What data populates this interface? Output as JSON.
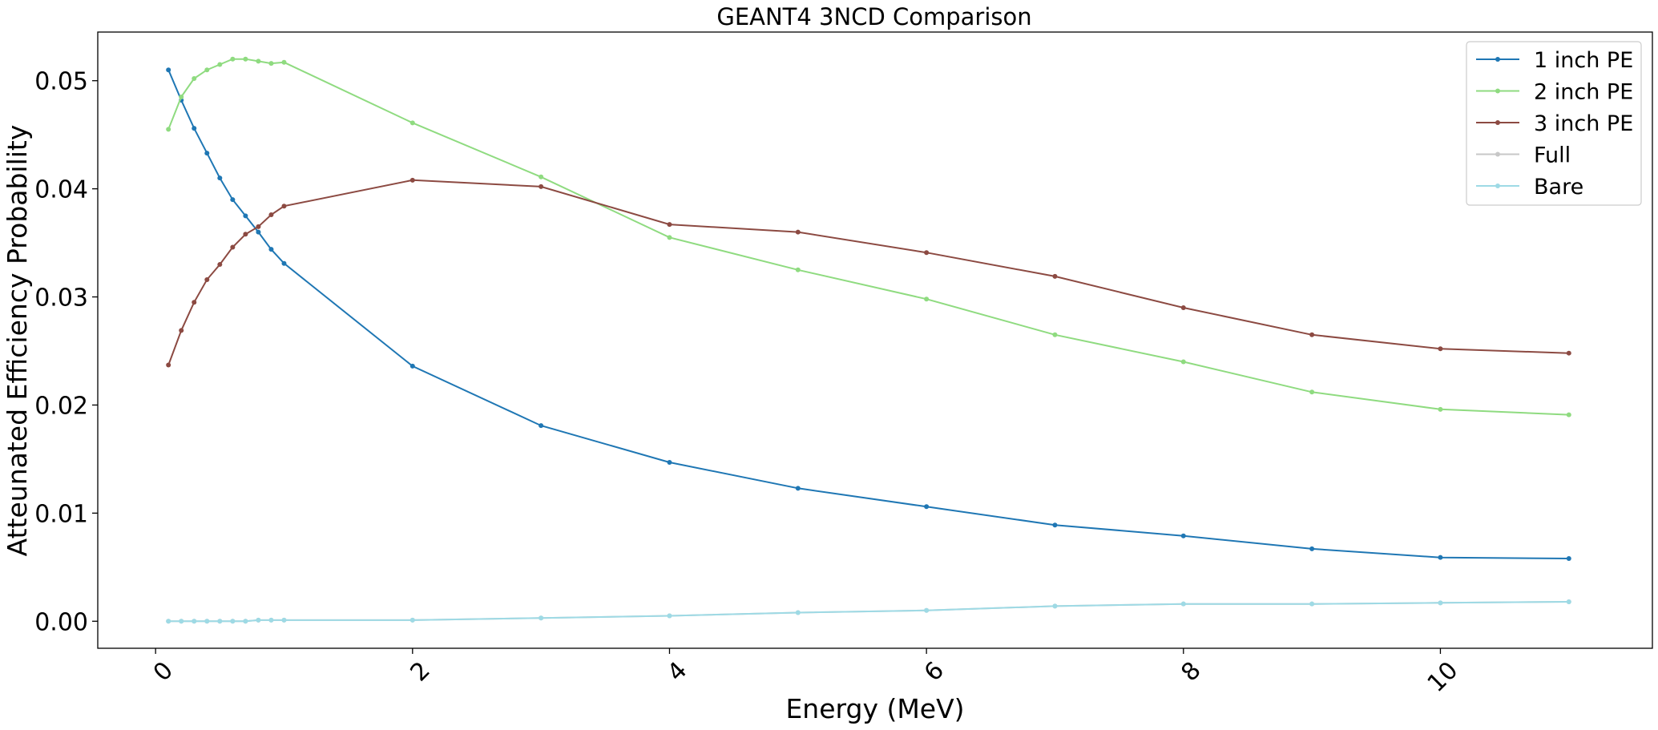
{
  "chart_data": {
    "type": "line",
    "title": "GEANT4 3NCD Comparison",
    "xlabel": "Energy (MeV)",
    "ylabel": "Atteunated Efficiency Probability",
    "xlim": [
      -0.45,
      11.65
    ],
    "ylim": [
      -0.0025,
      0.0545
    ],
    "xticks": [
      0,
      2,
      4,
      6,
      8,
      10
    ],
    "xtick_labels": [
      "0",
      "2",
      "4",
      "6",
      "8",
      "10"
    ],
    "xtick_rotation": -45,
    "yticks": [
      0.0,
      0.01,
      0.02,
      0.03,
      0.04,
      0.05
    ],
    "ytick_labels": [
      "0.00",
      "0.01",
      "0.02",
      "0.03",
      "0.04",
      "0.05"
    ],
    "grid": false,
    "legend_position": "top-right",
    "x": [
      0.1,
      0.2,
      0.3,
      0.4,
      0.5,
      0.6,
      0.7,
      0.8,
      0.9,
      1,
      2,
      3,
      4,
      5,
      6,
      7,
      8,
      9,
      10,
      11
    ],
    "series": [
      {
        "name": "1 inch PE",
        "color": "#1f77b4",
        "values": [
          0.051,
          0.0482,
          0.0456,
          0.0433,
          0.041,
          0.039,
          0.0375,
          0.036,
          0.0344,
          0.0331,
          0.0236,
          0.0181,
          0.0147,
          0.0123,
          0.0106,
          0.0089,
          0.0079,
          0.0067,
          0.0059,
          0.0058
        ]
      },
      {
        "name": "2 inch PE",
        "color": "#8fdb80",
        "values": [
          0.0455,
          0.0485,
          0.0502,
          0.051,
          0.0515,
          0.052,
          0.052,
          0.0518,
          0.0516,
          0.0517,
          0.0461,
          0.0411,
          0.0355,
          0.0325,
          0.0298,
          0.0265,
          0.024,
          0.0212,
          0.0196,
          0.0191
        ]
      },
      {
        "name": "3 inch PE",
        "color": "#8c4a42",
        "values": [
          0.0237,
          0.0269,
          0.0295,
          0.0316,
          0.033,
          0.0346,
          0.0358,
          0.0365,
          0.0376,
          0.0384,
          0.0408,
          0.0402,
          0.0367,
          0.036,
          0.0341,
          0.0319,
          0.029,
          0.0265,
          0.0252,
          0.0248
        ]
      },
      {
        "name": "Full",
        "color": "#c7c7c7",
        "values": [
          0.0,
          0.0,
          0.0,
          0.0,
          0.0,
          0.0,
          0.0,
          0.0001,
          0.0001,
          0.0001,
          0.0001,
          0.0003,
          0.0005,
          0.0008,
          0.001,
          0.0014,
          0.0016,
          0.0016,
          0.0017,
          0.0018
        ]
      },
      {
        "name": "Bare",
        "color": "#9edae5",
        "values": [
          0.0,
          0.0,
          0.0,
          0.0,
          0.0,
          0.0,
          0.0,
          0.0001,
          0.0001,
          0.0001,
          0.0001,
          0.0003,
          0.0005,
          0.0008,
          0.001,
          0.0014,
          0.0016,
          0.0016,
          0.0017,
          0.0018
        ]
      }
    ]
  }
}
